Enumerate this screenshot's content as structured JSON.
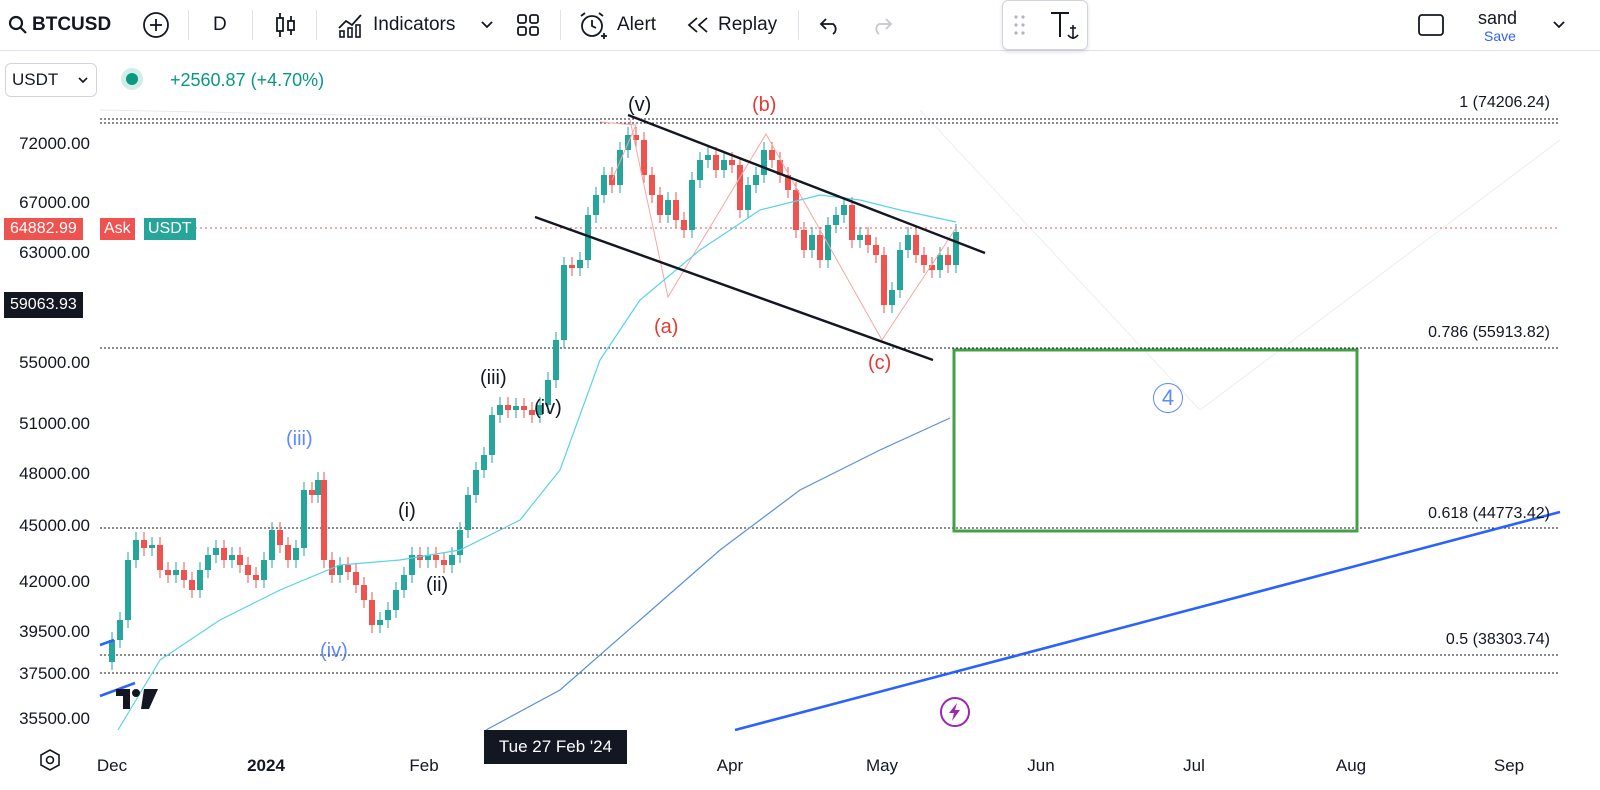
{
  "toolbar": {
    "symbol": "BTCUSD",
    "interval": "D",
    "indicators_label": "Indicators",
    "alert_label": "Alert",
    "replay_label": "Replay",
    "user_name": "sand",
    "save_label": "Save"
  },
  "legend": {
    "currency": "USDT",
    "change": "+2560.87 (+4.70%)"
  },
  "price_axis": [
    "72000.00",
    "67000.00",
    "63000.00",
    "55000.00",
    "51000.00",
    "48000.00",
    "45000.00",
    "42000.00",
    "39500.00",
    "37500.00",
    "35500.00"
  ],
  "price_tags": {
    "current": "64882.99",
    "ask": "Ask",
    "currency": "USDT",
    "crosshair": "59063.93"
  },
  "time_axis": {
    "labels": [
      "Dec",
      "2024",
      "Feb",
      "Apr",
      "May",
      "Jun",
      "Jul",
      "Aug",
      "Sep"
    ],
    "crosshair": "Tue 27 Feb '24"
  },
  "fib_levels": [
    "1 (74206.24)",
    "0.786 (55913.82)",
    "0.618 (44773.42)",
    "0.5 (38303.74)"
  ],
  "wave_labels": {
    "v": "(v)",
    "b": "(b)",
    "a": "(a)",
    "c": "(c)",
    "iii_black": "(iii)",
    "iv_black": "(iv)",
    "i": "(i)",
    "ii": "(ii)",
    "iii_blue": "(iii)",
    "iv_blue": "(iv)",
    "four": "4"
  },
  "colors": {
    "up": "#26a69a",
    "down": "#ef5350",
    "fib": "#131722",
    "box": "#43a047",
    "trend": "#2962ff",
    "ma_short": "#56d4e8",
    "ma_long": "#5b8fd9"
  }
}
